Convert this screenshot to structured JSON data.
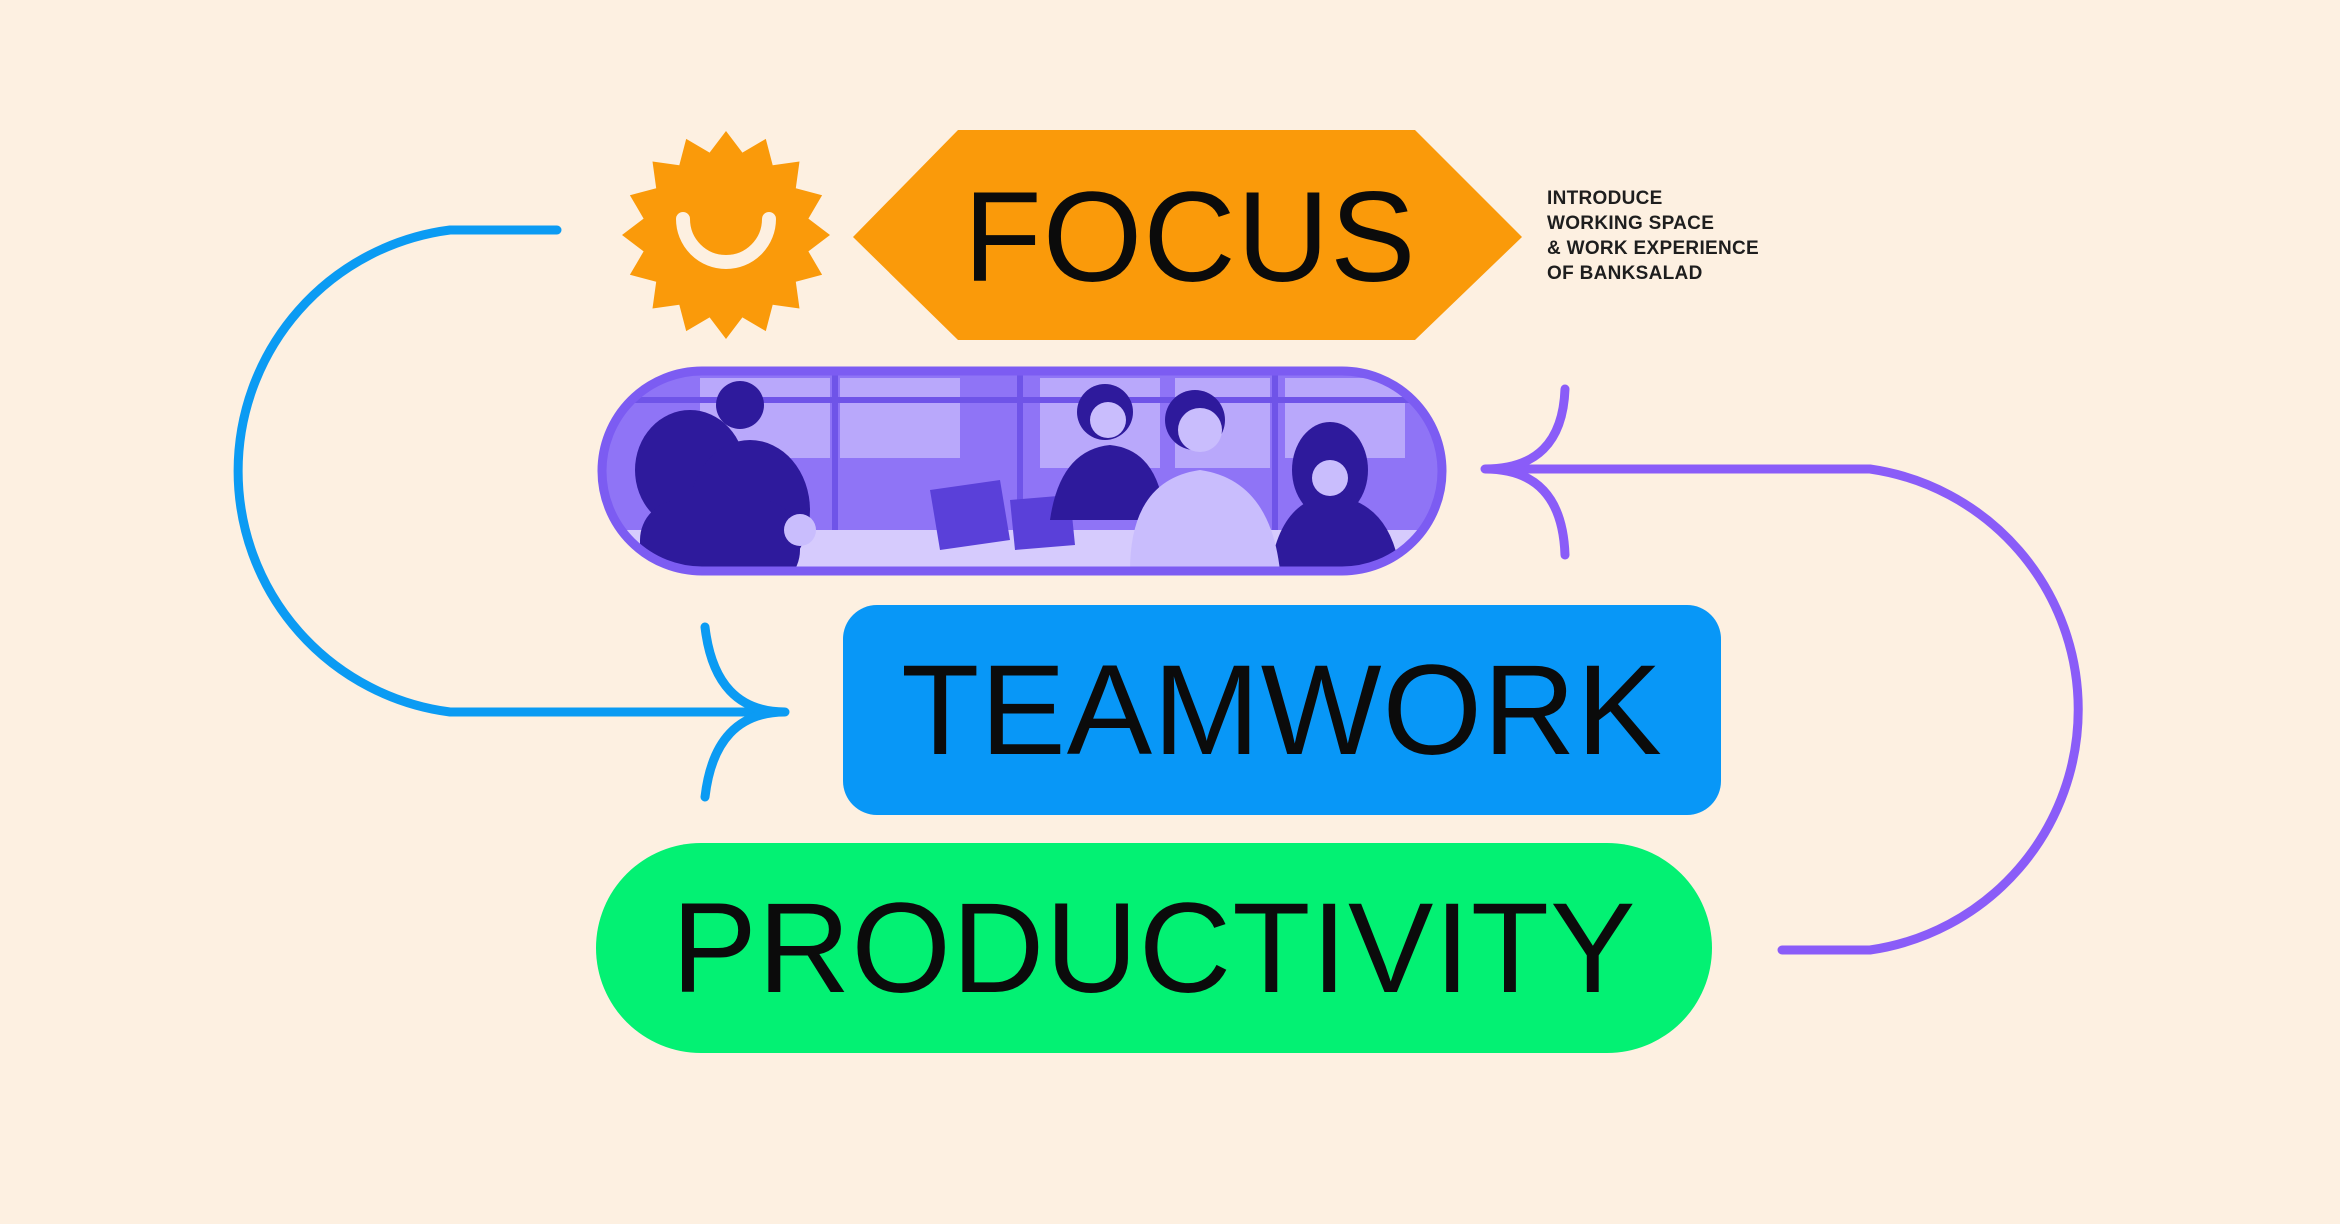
{
  "hero": {
    "focus_label": "FOCUS",
    "teamwork_label": "TEAMWORK",
    "productivity_label": "PRODUCTIVITY"
  },
  "tagline": [
    "INTRODUCE",
    "WORKING SPACE",
    "& WORK EXPERIENCE",
    "OF BANKSALAD"
  ],
  "icons": {
    "sun": "smiling-sun-icon",
    "photo": "team-meeting-photo"
  },
  "colors": {
    "background": "#fdf0e1",
    "focus": "#fa9a0a",
    "teamwork": "#0897f7",
    "productivity": "#03f173",
    "photo_tint": "#7c5cf2",
    "arrow_blue": "#0b9bf3",
    "arrow_purple": "#8a5cf8"
  }
}
